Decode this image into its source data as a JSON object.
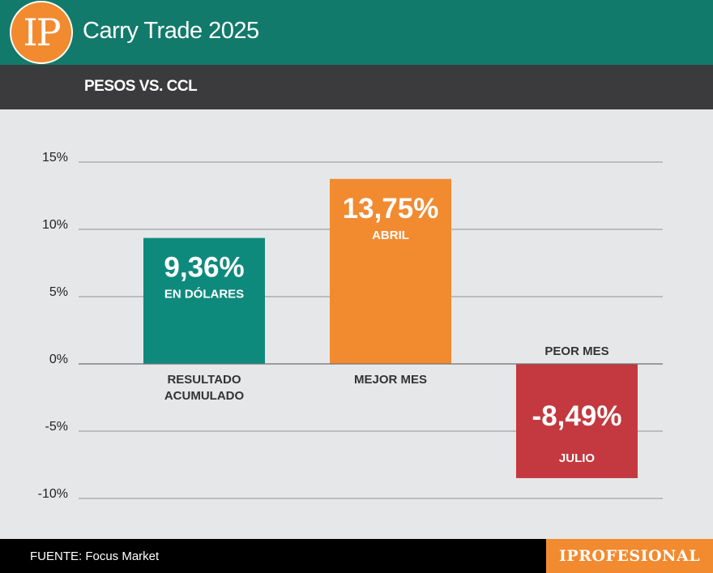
{
  "header": {
    "logo_text": "IP",
    "title": "Carry Trade 2025",
    "subtitle": "PESOS VS. CCL"
  },
  "footer": {
    "source": "FUENTE: Focus Market",
    "brand": "IPROFESIONAL"
  },
  "colors": {
    "header_bg": "#127a6b",
    "subheader_bg": "#3b3a3c",
    "accent_orange": "#f28a30",
    "teal": "#0e8a7d",
    "orange": "#f28a30",
    "red": "#c3393f"
  },
  "chart_data": {
    "type": "bar",
    "ylim": [
      -10,
      15
    ],
    "yticks": [
      15,
      10,
      5,
      0,
      -5,
      -10
    ],
    "ytick_labels": [
      "15%",
      "10%",
      "5%",
      "0%",
      "-5%",
      "-10%"
    ],
    "grid": true,
    "bars": [
      {
        "category": "RESULTADO ACUMULADO",
        "category_lines": [
          "RESULTADO",
          "ACUMULADO"
        ],
        "value": 9.36,
        "value_label": "9,36%",
        "sublabel": "EN DÓLARES",
        "color": "#0e8a7d"
      },
      {
        "category": "MEJOR MES",
        "category_lines": [
          "MEJOR MES"
        ],
        "value": 13.75,
        "value_label": "13,75%",
        "sublabel": "ABRIL",
        "color": "#f28a30"
      },
      {
        "category": "PEOR MES",
        "category_lines": [
          "PEOR MES"
        ],
        "value": -8.49,
        "value_label": "-8,49%",
        "sublabel": "JULIO",
        "color": "#c3393f"
      }
    ]
  }
}
